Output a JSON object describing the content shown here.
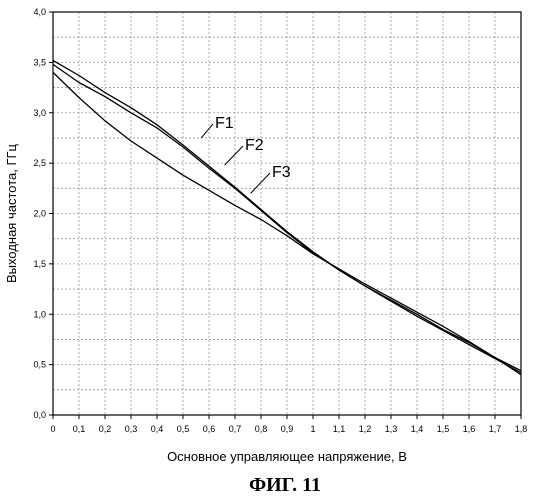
{
  "chart_data": {
    "type": "line",
    "xlabel": "Основное управляющее напряжение, В",
    "ylabel": "Выходная частота, ГГц",
    "caption": "ФИГ. 11",
    "xlim": [
      0,
      1.8
    ],
    "ylim": [
      0,
      4.0
    ],
    "x_ticks": [
      "0",
      "0,1",
      "0,2",
      "0,3",
      "0,4",
      "0,5",
      "0,6",
      "0,7",
      "0,8",
      "0,9",
      "1",
      "1,1",
      "1,2",
      "1,3",
      "1,4",
      "1,5",
      "1,6",
      "1,7",
      "1,8"
    ],
    "y_ticks": [
      "0,0",
      "0,5",
      "1,0",
      "1,5",
      "2,0",
      "2,5",
      "3,0",
      "3,5",
      "4,0"
    ],
    "grid": true,
    "series": [
      {
        "name": "F1",
        "x": [
          0,
          0.1,
          0.2,
          0.3,
          0.4,
          0.5,
          0.6,
          0.7,
          0.8,
          0.9,
          1.0,
          1.1,
          1.2,
          1.3,
          1.4,
          1.5,
          1.6,
          1.7,
          1.8
        ],
        "y": [
          3.52,
          3.37,
          3.2,
          3.05,
          2.88,
          2.68,
          2.47,
          2.26,
          2.04,
          1.82,
          1.62,
          1.44,
          1.28,
          1.14,
          1.0,
          0.85,
          0.72,
          0.57,
          0.44
        ]
      },
      {
        "name": "F2",
        "x": [
          0,
          0.1,
          0.2,
          0.3,
          0.4,
          0.5,
          0.6,
          0.7,
          0.8,
          0.9,
          1.0,
          1.1,
          1.2,
          1.3,
          1.4,
          1.5,
          1.6,
          1.7,
          1.8
        ],
        "y": [
          3.48,
          3.3,
          3.16,
          3.0,
          2.85,
          2.66,
          2.45,
          2.25,
          2.03,
          1.81,
          1.61,
          1.44,
          1.28,
          1.13,
          0.98,
          0.84,
          0.7,
          0.56,
          0.42
        ]
      },
      {
        "name": "F3",
        "x": [
          0,
          0.1,
          0.2,
          0.3,
          0.4,
          0.5,
          0.6,
          0.7,
          0.8,
          0.9,
          1.0,
          1.1,
          1.2,
          1.3,
          1.4,
          1.5,
          1.6,
          1.7,
          1.8
        ],
        "y": [
          3.4,
          3.15,
          2.92,
          2.72,
          2.55,
          2.38,
          2.23,
          2.08,
          1.94,
          1.78,
          1.6,
          1.45,
          1.3,
          1.16,
          1.02,
          0.88,
          0.73,
          0.57,
          0.4
        ]
      }
    ],
    "annotations": [
      {
        "text": "F1",
        "series": "F1",
        "point_x": 0.57,
        "point_y": 2.75
      },
      {
        "text": "F2",
        "series": "F2",
        "point_x": 0.66,
        "point_y": 2.48
      },
      {
        "text": "F3",
        "series": "F3",
        "point_x": 0.76,
        "point_y": 2.2
      }
    ]
  }
}
